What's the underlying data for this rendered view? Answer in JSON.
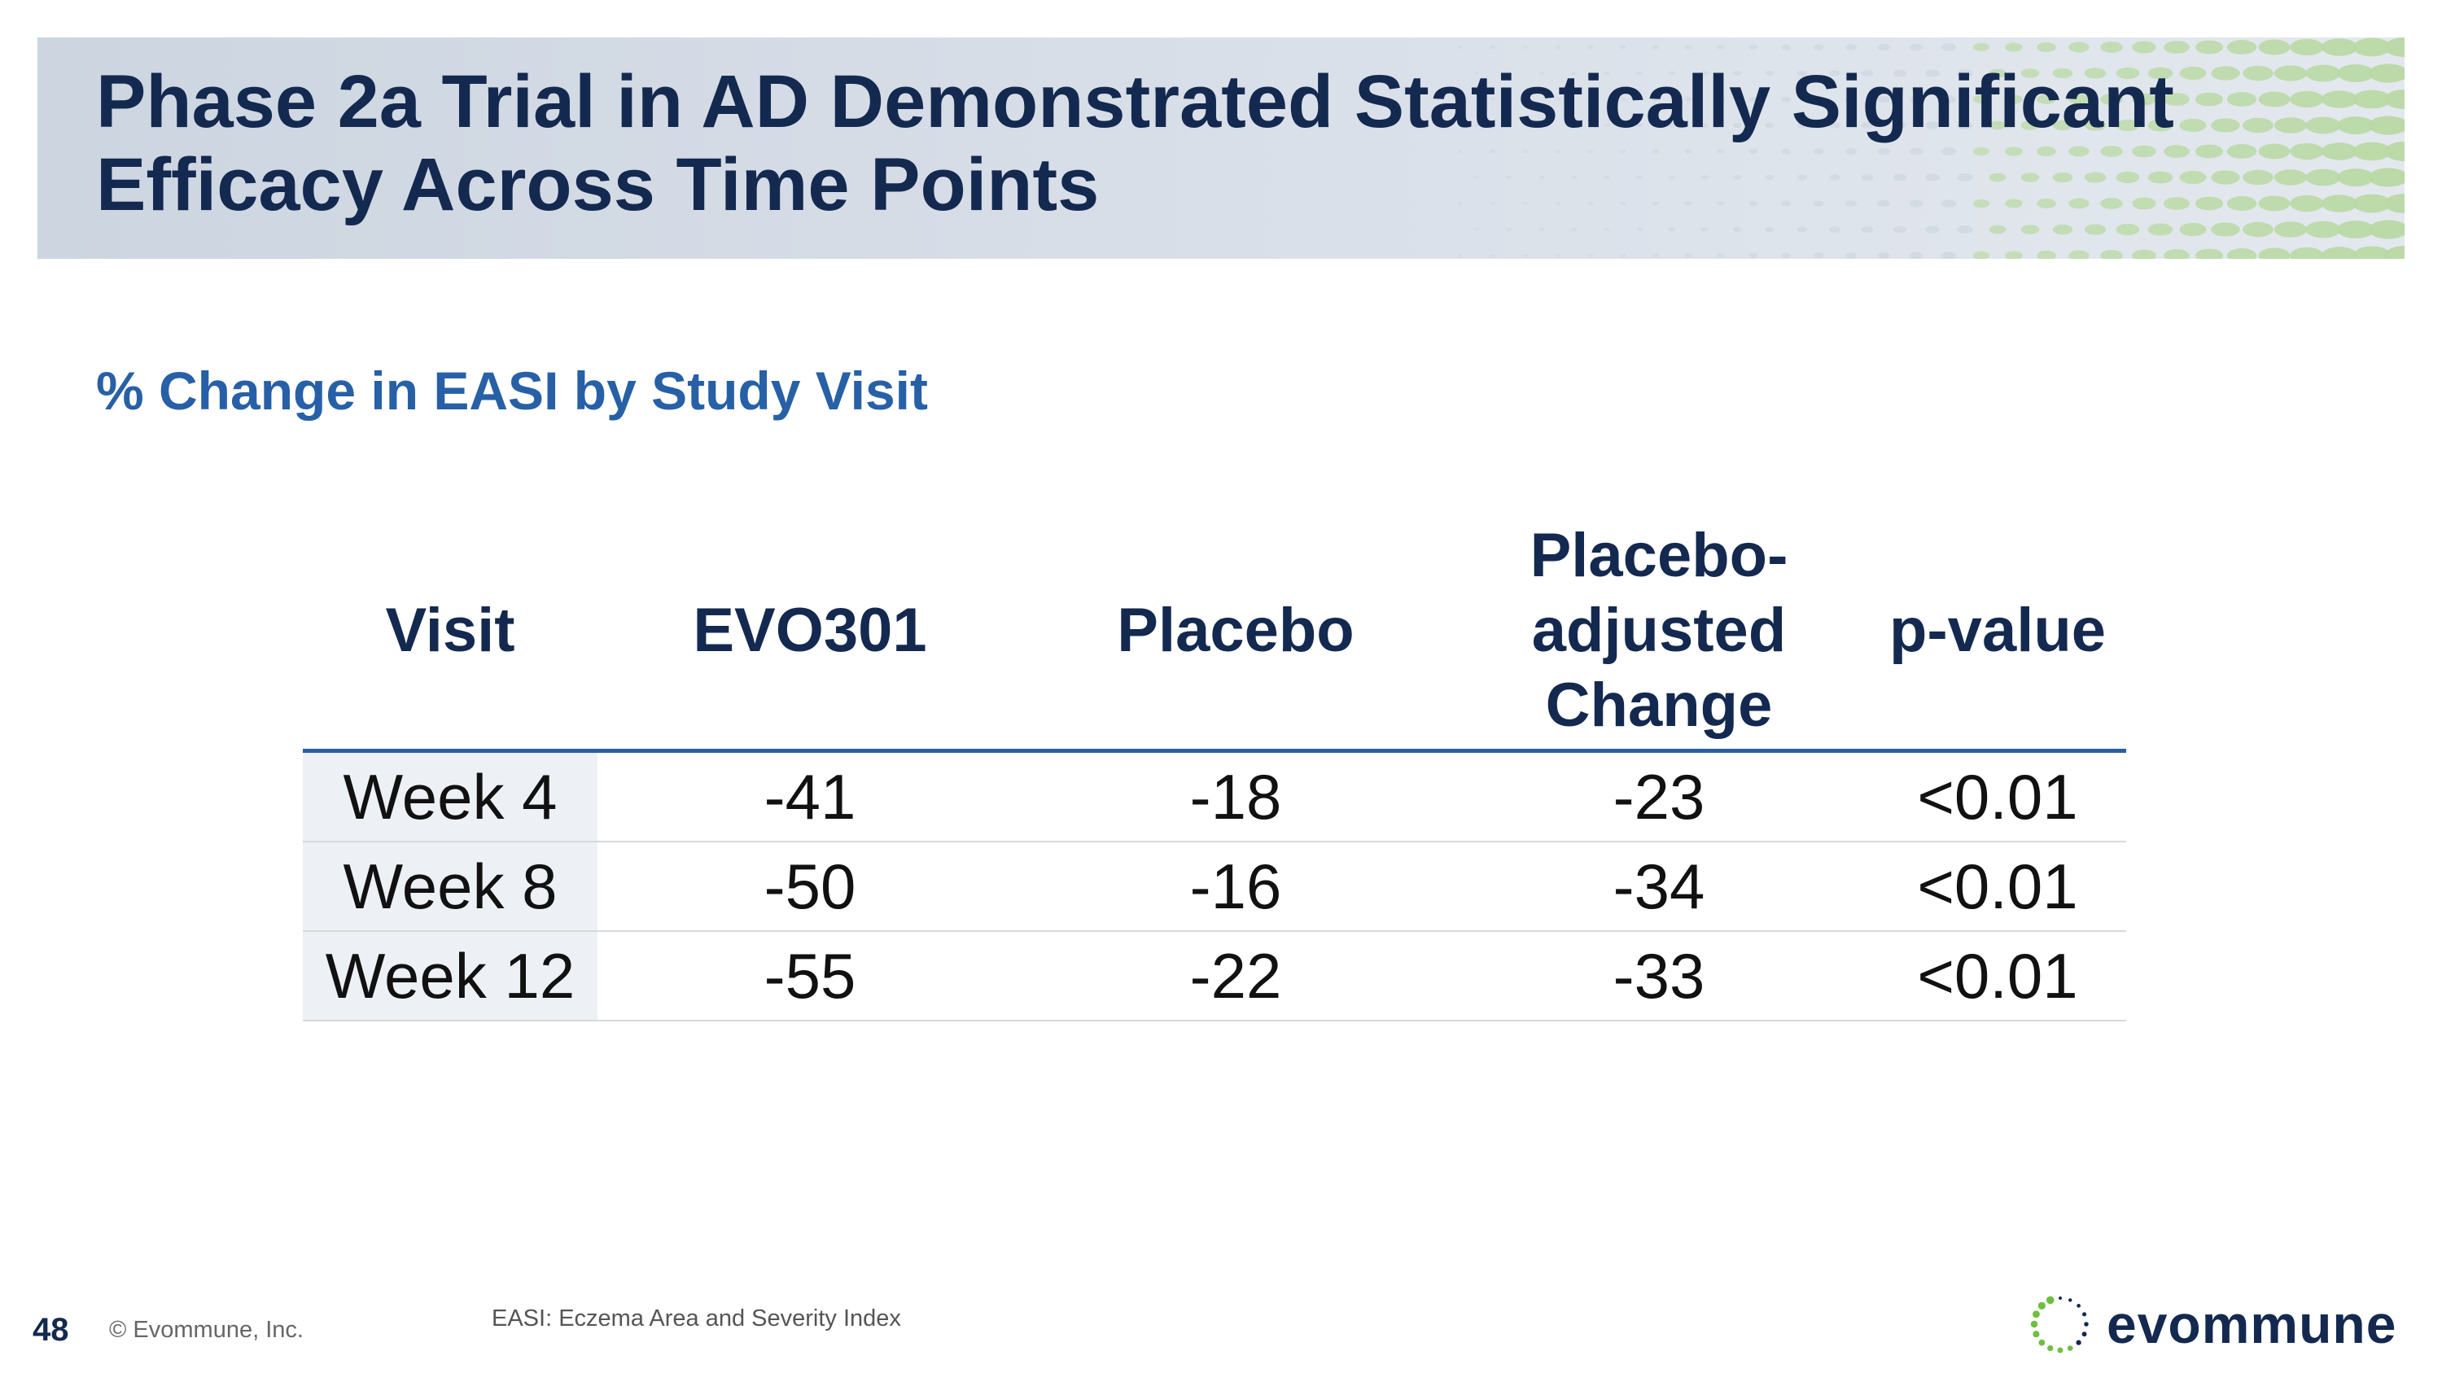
{
  "header": {
    "title_line1": "Phase 2a Trial in AD Demonstrated Statistically Significant",
    "title_line2": "Efficacy Across Time Points"
  },
  "subtitle": "% Change in EASI by Study Visit",
  "table": {
    "headers": [
      "Visit",
      "EVO301",
      "Placebo",
      "Placebo-adjusted Change",
      "p-value"
    ],
    "header_lines": {
      "adjusted_1": "Placebo-",
      "adjusted_2": "adjusted",
      "adjusted_3": "Change"
    },
    "rows": [
      [
        "Week 4",
        "-41",
        "-18",
        "-23",
        "<0.01"
      ],
      [
        "Week 8",
        "-50",
        "-16",
        "-34",
        "<0.01"
      ],
      [
        "Week 12",
        "-55",
        "-22",
        "-33",
        "<0.01"
      ]
    ]
  },
  "footer": {
    "page_number": "48",
    "copyright": "© Evommune, Inc.",
    "footnote": "EASI: Eczema Area and Severity Index"
  },
  "logo": {
    "text": "evommune",
    "icon": "dotted-circle-logo-icon"
  },
  "colors": {
    "title_navy": "#14294f",
    "subtitle_blue": "#2760a6",
    "rule_blue": "#2a5ea0",
    "dot_green": "#b9d9a4",
    "visit_cell_bg": "#edf0f4"
  }
}
